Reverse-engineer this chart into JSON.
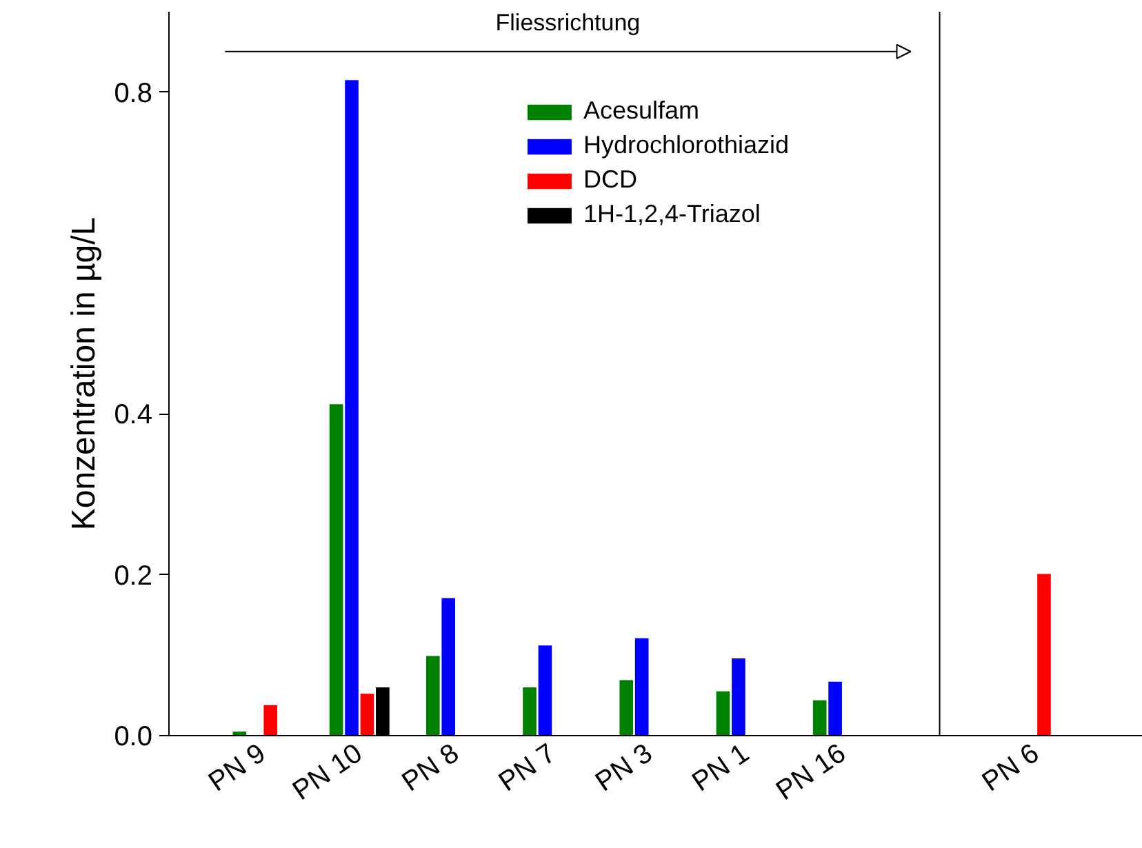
{
  "chart_data": {
    "type": "bar",
    "categories": [
      "PN 9",
      "PN 10",
      "PN 8",
      "PN 7",
      "PN 3",
      "PN 1",
      "PN 16",
      null,
      "PN 6"
    ],
    "series": [
      {
        "name": "Acesulfam",
        "color": "#008000",
        "values": [
          0.005,
          0.412,
          0.099,
          0.06,
          0.069,
          0.055,
          0.044,
          null,
          null
        ]
      },
      {
        "name": "Hydrochlorothiazid",
        "color": "#0000ff",
        "values": [
          null,
          0.815,
          0.171,
          0.112,
          0.121,
          0.096,
          0.067,
          null,
          null
        ]
      },
      {
        "name": "DCD",
        "color": "#ff0000",
        "values": [
          0.038,
          0.052,
          null,
          null,
          null,
          null,
          null,
          null,
          0.201
        ]
      },
      {
        "name": "1H-1,2,4-Triazol",
        "color": "#000000",
        "values": [
          null,
          0.06,
          null,
          null,
          null,
          null,
          null,
          null,
          null
        ]
      }
    ],
    "ylabel": "Konzentration in µg/L",
    "ylim": [
      0,
      0.9
    ],
    "yticks": [
      {
        "value": 0,
        "label": "0.0"
      },
      {
        "value": 0.2,
        "label": "0.2"
      },
      {
        "value": 0.4,
        "label": "0.4"
      },
      {
        "value": 0.8,
        "label": "0.8"
      }
    ],
    "legend": "top",
    "annotations": [
      "Fliessrichtung"
    ]
  }
}
